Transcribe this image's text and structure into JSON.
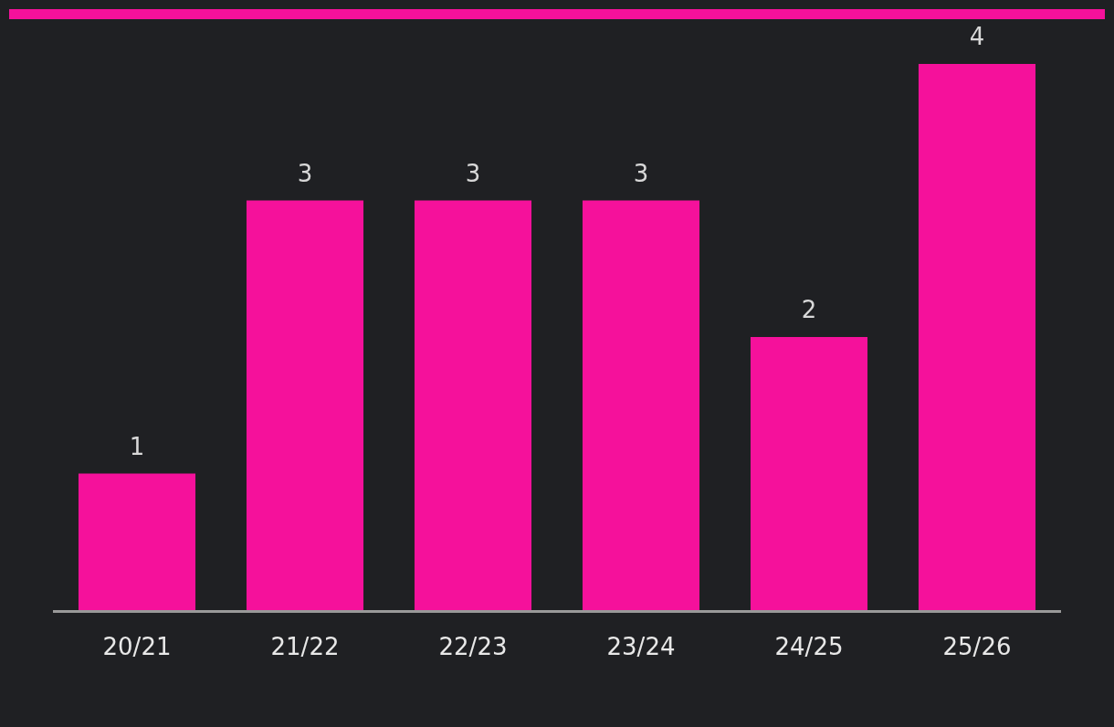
{
  "chart_data": {
    "type": "bar",
    "categories": [
      "20/21",
      "21/22",
      "22/23",
      "23/24",
      "24/25",
      "25/26"
    ],
    "values": [
      1,
      3,
      3,
      3,
      2,
      4
    ],
    "color": "#f5119b",
    "data_labels": true
  }
}
